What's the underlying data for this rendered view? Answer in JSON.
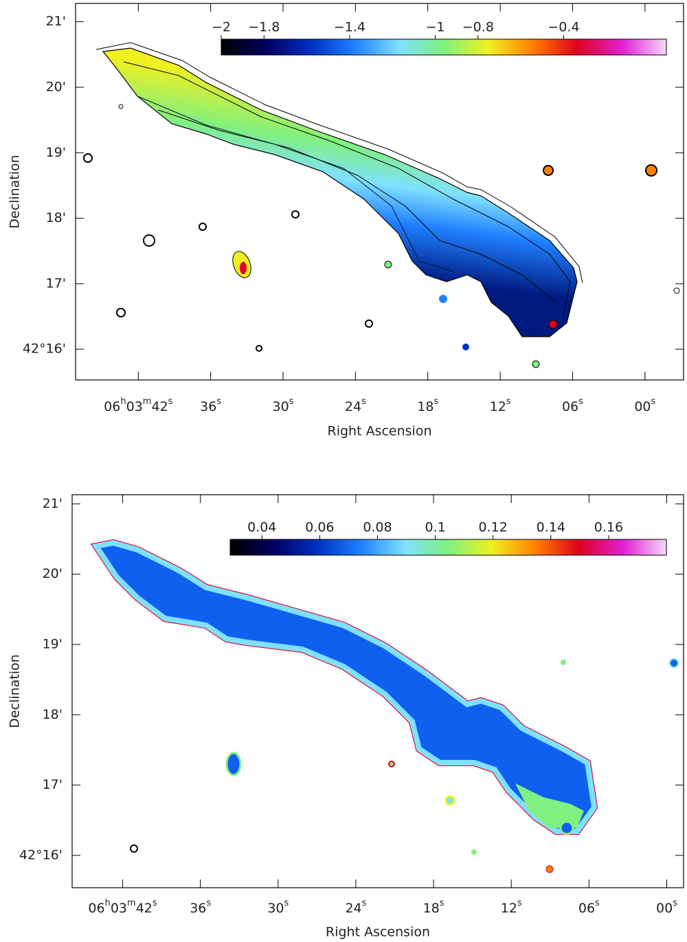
{
  "chart_data": [
    {
      "type": "map",
      "xlabel": "Right Ascension",
      "ylabel": "Declination",
      "xlim": [
        47.2,
        -3.2
      ],
      "ylim": [
        15.53,
        21.28
      ],
      "xticks": [
        {
          "value": 42,
          "label": "06h03m42s"
        },
        {
          "value": 36,
          "label": "36s"
        },
        {
          "value": 30,
          "label": "30s"
        },
        {
          "value": 24,
          "label": "24s"
        },
        {
          "value": 18,
          "label": "18s"
        },
        {
          "value": 12,
          "label": "12s"
        },
        {
          "value": 6,
          "label": "06s"
        },
        {
          "value": 0,
          "label": "00s"
        }
      ],
      "yticks": [
        {
          "value": 21,
          "label": "21'"
        },
        {
          "value": 20,
          "label": "20'"
        },
        {
          "value": 19,
          "label": "19'"
        },
        {
          "value": 18,
          "label": "18'"
        },
        {
          "value": 17,
          "label": "17'"
        },
        {
          "value": 16,
          "label": "42°16'"
        }
      ],
      "colorbar": {
        "lim": [
          -2,
          0.08
        ],
        "ticks": [
          {
            "value": -2,
            "label": "−2"
          },
          {
            "value": -1.8,
            "label": "−1.8"
          },
          {
            "value": -1.4,
            "label": "−1.4"
          },
          {
            "value": -1,
            "label": "−1"
          },
          {
            "value": -0.8,
            "label": "−0.8"
          },
          {
            "value": -0.4,
            "label": "−0.4"
          }
        ],
        "colormap": [
          "#000000",
          "#000060",
          "#0030c0",
          "#2080ff",
          "#80e0ff",
          "#80f080",
          "#f0f020",
          "#ff8000",
          "#e00020",
          "#e020d0",
          "#f4d8fa"
        ]
      }
    },
    {
      "type": "map",
      "xlabel": "Right Ascension",
      "ylabel": "Declination",
      "xlim": [
        45.9,
        -1.3
      ],
      "ylim": [
        15.54,
        21.13
      ],
      "xticks": [
        {
          "value": 42,
          "label": "06h03m42s"
        },
        {
          "value": 36,
          "label": "36s"
        },
        {
          "value": 30,
          "label": "30s"
        },
        {
          "value": 24,
          "label": "24s"
        },
        {
          "value": 18,
          "label": "18s"
        },
        {
          "value": 12,
          "label": "12s"
        },
        {
          "value": 6,
          "label": "06s"
        },
        {
          "value": 0,
          "label": "00s"
        }
      ],
      "yticks": [
        {
          "value": 21,
          "label": "21'"
        },
        {
          "value": 20,
          "label": "20'"
        },
        {
          "value": 19,
          "label": "19'"
        },
        {
          "value": 18,
          "label": "18'"
        },
        {
          "value": 17,
          "label": "17'"
        },
        {
          "value": 16,
          "label": "42°16'"
        }
      ],
      "colorbar": {
        "lim": [
          0.029,
          0.18
        ],
        "ticks": [
          0.04,
          0.06,
          0.08,
          {
            "value": 0.1,
            "label": "0.1"
          },
          0.12,
          0.14,
          0.16
        ],
        "colormap": [
          "#000000",
          "#000060",
          "#0030c0",
          "#2080ff",
          "#80e0ff",
          "#80f080",
          "#f0f020",
          "#ff8000",
          "#e00020",
          "#e020d0",
          "#f4d8fa"
        ]
      }
    }
  ]
}
